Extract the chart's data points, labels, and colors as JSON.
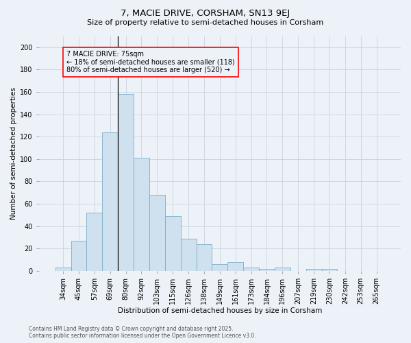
{
  "title1": "7, MACIE DRIVE, CORSHAM, SN13 9EJ",
  "title2": "Size of property relative to semi-detached houses in Corsham",
  "xlabel": "Distribution of semi-detached houses by size in Corsham",
  "ylabel": "Number of semi-detached properties",
  "footer1": "Contains HM Land Registry data © Crown copyright and database right 2025.",
  "footer2": "Contains public sector information licensed under the Open Government Licence v3.0.",
  "annotation_title": "7 MACIE DRIVE: 75sqm",
  "annotation_line1": "← 18% of semi-detached houses are smaller (118)",
  "annotation_line2": "80% of semi-detached houses are larger (520) →",
  "bar_labels": [
    "34sqm",
    "45sqm",
    "57sqm",
    "69sqm",
    "80sqm",
    "92sqm",
    "103sqm",
    "115sqm",
    "126sqm",
    "138sqm",
    "149sqm",
    "161sqm",
    "173sqm",
    "184sqm",
    "196sqm",
    "207sqm",
    "219sqm",
    "230sqm",
    "242sqm",
    "253sqm",
    "265sqm"
  ],
  "bar_values": [
    3,
    27,
    52,
    124,
    158,
    101,
    68,
    49,
    29,
    24,
    6,
    8,
    3,
    2,
    3,
    0,
    2,
    2,
    0,
    0,
    0
  ],
  "bar_color": "#cfe0ef",
  "bar_edge_color": "#7aaec8",
  "property_line_bar_index": 4,
  "ylim": [
    0,
    210
  ],
  "yticks": [
    0,
    20,
    40,
    60,
    80,
    100,
    120,
    140,
    160,
    180,
    200
  ],
  "grid_color": "#c8d4e0",
  "background_color": "#edf2f8",
  "title1_fontsize": 9.5,
  "title2_fontsize": 8,
  "axis_fontsize": 7.5,
  "tick_fontsize": 7,
  "footer_fontsize": 5.5,
  "annot_fontsize": 7
}
